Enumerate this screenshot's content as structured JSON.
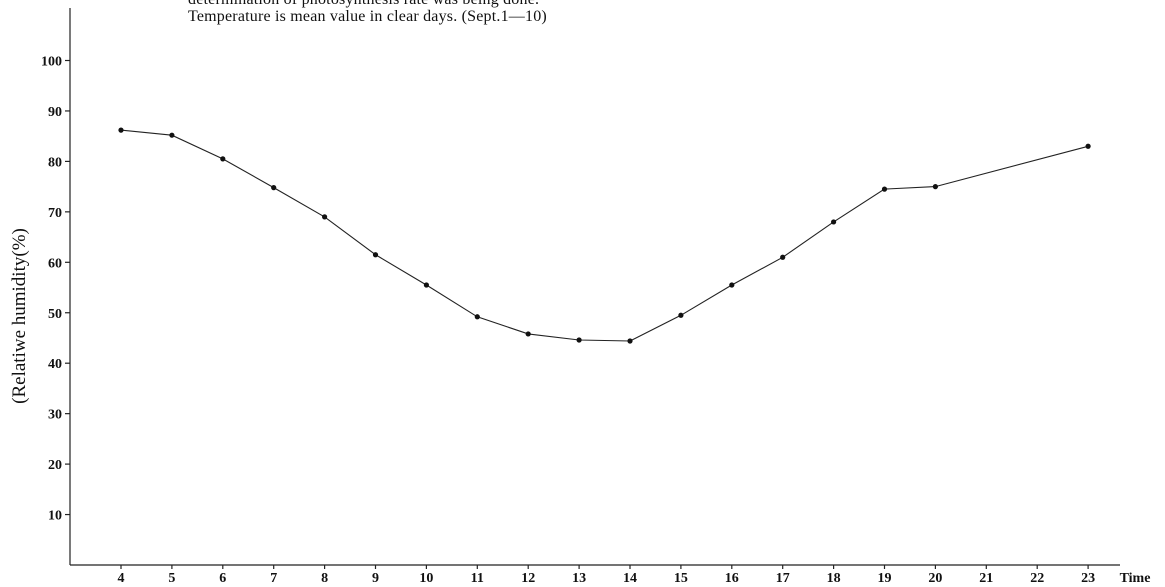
{
  "chart_data": {
    "type": "line",
    "title_lines": [
      "determination of photosynthesis rate was being done.",
      "Temperature is mean value in clear days. (Sept.1—10)"
    ],
    "ylabel": "(Relatiwe humidity(%)",
    "xlabel": "Time",
    "ylim": [
      0,
      100
    ],
    "y_ticks": [
      10,
      20,
      30,
      40,
      50,
      60,
      70,
      80,
      90,
      100
    ],
    "x_ticks": [
      4,
      5,
      6,
      7,
      8,
      9,
      10,
      11,
      12,
      13,
      14,
      15,
      16,
      17,
      18,
      19,
      20,
      21,
      22,
      23
    ],
    "grid": false,
    "series": [
      {
        "x": [
          4,
          5,
          6,
          7,
          8,
          9,
          10,
          11,
          12,
          13,
          14,
          15,
          16,
          17,
          18,
          19,
          20,
          23
        ],
        "values": [
          86.2,
          85.2,
          80.5,
          74.8,
          69.0,
          61.5,
          55.5,
          49.2,
          45.8,
          44.6,
          44.4,
          49.5,
          55.5,
          61.0,
          68.0,
          74.5,
          75.0,
          83.0
        ]
      }
    ]
  }
}
